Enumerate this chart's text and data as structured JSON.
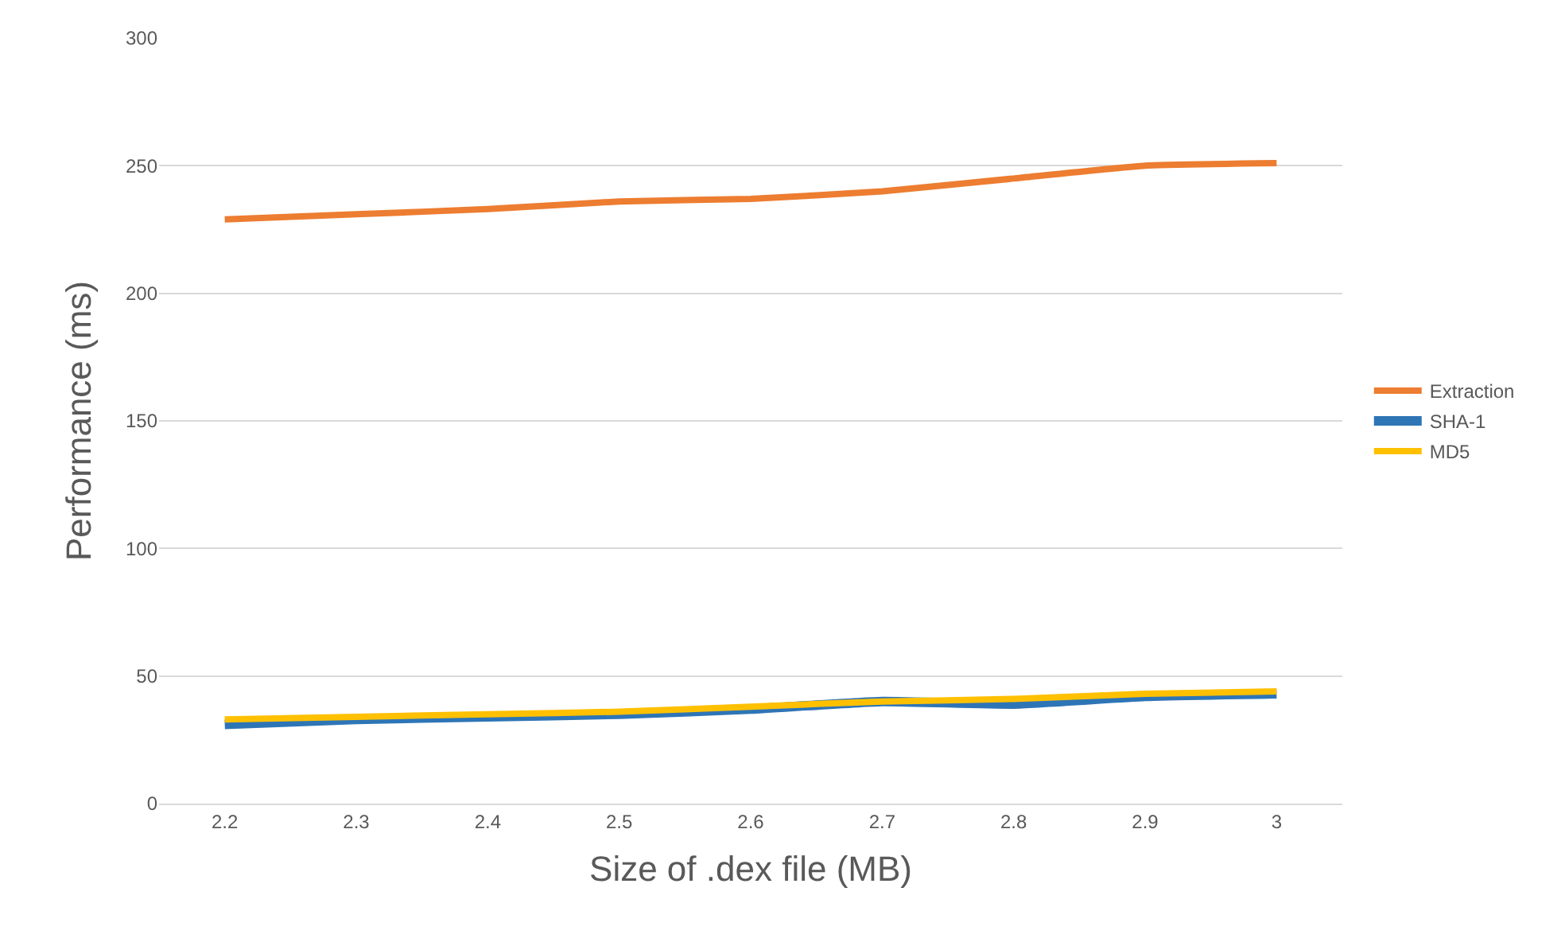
{
  "chart_data": {
    "type": "line",
    "xlabel": "Size of .dex file (MB)",
    "ylabel": "Performance (ms)",
    "categories": [
      "2.2",
      "2.3",
      "2.4",
      "2.5",
      "2.6",
      "2.7",
      "2.8",
      "2.9",
      "3"
    ],
    "series": [
      {
        "name": "Extraction",
        "color": "#ed7d31",
        "values": [
          229,
          231,
          233,
          236,
          237,
          240,
          245,
          250,
          251
        ]
      },
      {
        "name": "SHA-1",
        "color": "#2e75b6",
        "values": [
          31,
          33,
          34,
          35,
          37,
          40,
          39,
          42,
          43
        ]
      },
      {
        "name": "MD5",
        "color": "#ffc000",
        "values": [
          33,
          34,
          35,
          36,
          38,
          40,
          41,
          43,
          44
        ]
      }
    ],
    "ylim": [
      0,
      300
    ],
    "yticks": [
      0,
      50,
      100,
      150,
      200,
      250,
      300
    ],
    "grid": "y",
    "legend": "right",
    "marker": "none",
    "line_style": "solid"
  }
}
